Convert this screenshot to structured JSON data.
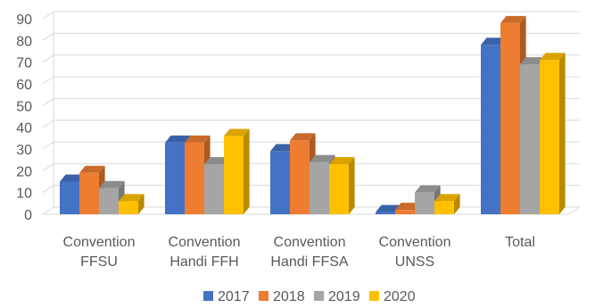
{
  "chart_data": {
    "type": "bar",
    "categories": [
      [
        "Convention",
        "FFSU"
      ],
      [
        "Convention",
        "Handi FFH"
      ],
      [
        "Convention",
        "Handi FFSA"
      ],
      [
        "Convention",
        "UNSS"
      ],
      [
        "Total"
      ]
    ],
    "series": [
      {
        "name": "2017",
        "values": [
          15,
          33,
          29,
          1,
          78
        ]
      },
      {
        "name": "2018",
        "values": [
          19,
          33,
          34,
          2,
          88
        ]
      },
      {
        "name": "2019",
        "values": [
          12,
          23,
          24,
          10,
          69
        ]
      },
      {
        "name": "2020",
        "values": [
          6,
          36,
          23,
          6,
          71
        ]
      }
    ],
    "colors": {
      "2017": "#4472C4",
      "2018": "#ED7D31",
      "2019": "#A5A5A5",
      "2020": "#FFC000"
    },
    "y_ticks": [
      "0",
      "10",
      "20",
      "30",
      "40",
      "50",
      "60",
      "70",
      "80",
      "90"
    ],
    "ylim": [
      0,
      90
    ],
    "grid": true,
    "bars_3d": true,
    "legend_position": "bottom",
    "title": "",
    "xlabel": "",
    "ylabel": ""
  }
}
